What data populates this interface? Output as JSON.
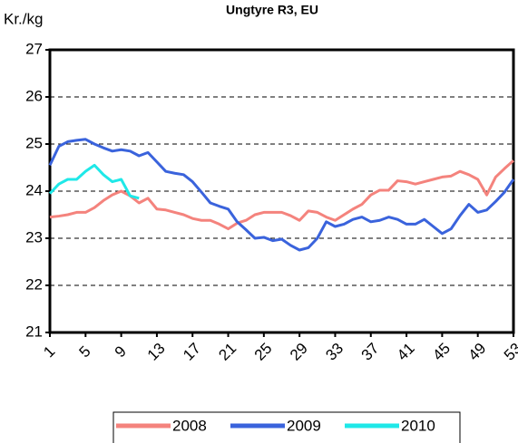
{
  "chart_data": {
    "type": "line",
    "title": "Ungtyre R3, EU",
    "y_label": "Kr./kg",
    "x": [
      1,
      2,
      3,
      4,
      5,
      6,
      7,
      8,
      9,
      10,
      11,
      12,
      13,
      14,
      15,
      16,
      17,
      18,
      19,
      20,
      21,
      22,
      23,
      24,
      25,
      26,
      27,
      28,
      29,
      30,
      31,
      32,
      33,
      34,
      35,
      36,
      37,
      38,
      39,
      40,
      41,
      42,
      43,
      44,
      45,
      46,
      47,
      48,
      49,
      50,
      51,
      52,
      53
    ],
    "xlim": [
      1,
      53
    ],
    "xticks": [
      1,
      5,
      9,
      13,
      17,
      21,
      25,
      29,
      33,
      37,
      41,
      45,
      49,
      53
    ],
    "ylim": [
      21,
      27
    ],
    "yticks": [
      21,
      22,
      23,
      24,
      25,
      26,
      27
    ],
    "grid": true,
    "legend": "bottom",
    "series": [
      {
        "name": "2008",
        "color": "#f4837d",
        "values": [
          23.45,
          23.47,
          23.5,
          23.55,
          23.55,
          23.65,
          23.8,
          23.92,
          24.0,
          23.9,
          23.75,
          23.85,
          23.62,
          23.6,
          23.55,
          23.5,
          23.42,
          23.38,
          23.38,
          23.3,
          23.2,
          23.32,
          23.38,
          23.5,
          23.55,
          23.55,
          23.55,
          23.48,
          23.38,
          23.58,
          23.55,
          23.45,
          23.38,
          23.5,
          23.62,
          23.72,
          23.92,
          24.02,
          24.02,
          24.22,
          24.2,
          24.15,
          24.2,
          24.25,
          24.3,
          24.32,
          24.42,
          24.35,
          24.25,
          23.92,
          24.3,
          24.48,
          24.65
        ]
      },
      {
        "name": "2009",
        "color": "#3a63dc",
        "values": [
          24.55,
          24.95,
          25.05,
          25.08,
          25.1,
          25.0,
          24.92,
          24.85,
          24.88,
          24.85,
          24.75,
          24.82,
          24.62,
          24.42,
          24.38,
          24.35,
          24.2,
          23.98,
          23.75,
          23.68,
          23.62,
          23.35,
          23.18,
          23.0,
          23.02,
          22.95,
          22.98,
          22.85,
          22.75,
          22.8,
          23.0,
          23.35,
          23.25,
          23.3,
          23.4,
          23.45,
          23.35,
          23.38,
          23.45,
          23.4,
          23.3,
          23.3,
          23.4,
          23.25,
          23.1,
          23.2,
          23.48,
          23.72,
          23.55,
          23.6,
          23.78,
          23.98,
          24.25
        ]
      },
      {
        "name": "2010",
        "color": "#1fe8e8",
        "values": [
          23.95,
          24.15,
          24.25,
          24.25,
          24.42,
          24.55,
          24.35,
          24.2,
          24.25,
          23.9,
          23.85,
          null,
          null,
          null,
          null,
          null,
          null,
          null,
          null,
          null,
          null,
          null,
          null,
          null,
          null,
          null,
          null,
          null,
          null,
          null,
          null,
          null,
          null,
          null,
          null,
          null,
          null,
          null,
          null,
          null,
          null,
          null,
          null,
          null,
          null,
          null,
          null,
          null,
          null,
          null,
          null,
          null,
          null
        ]
      }
    ]
  }
}
